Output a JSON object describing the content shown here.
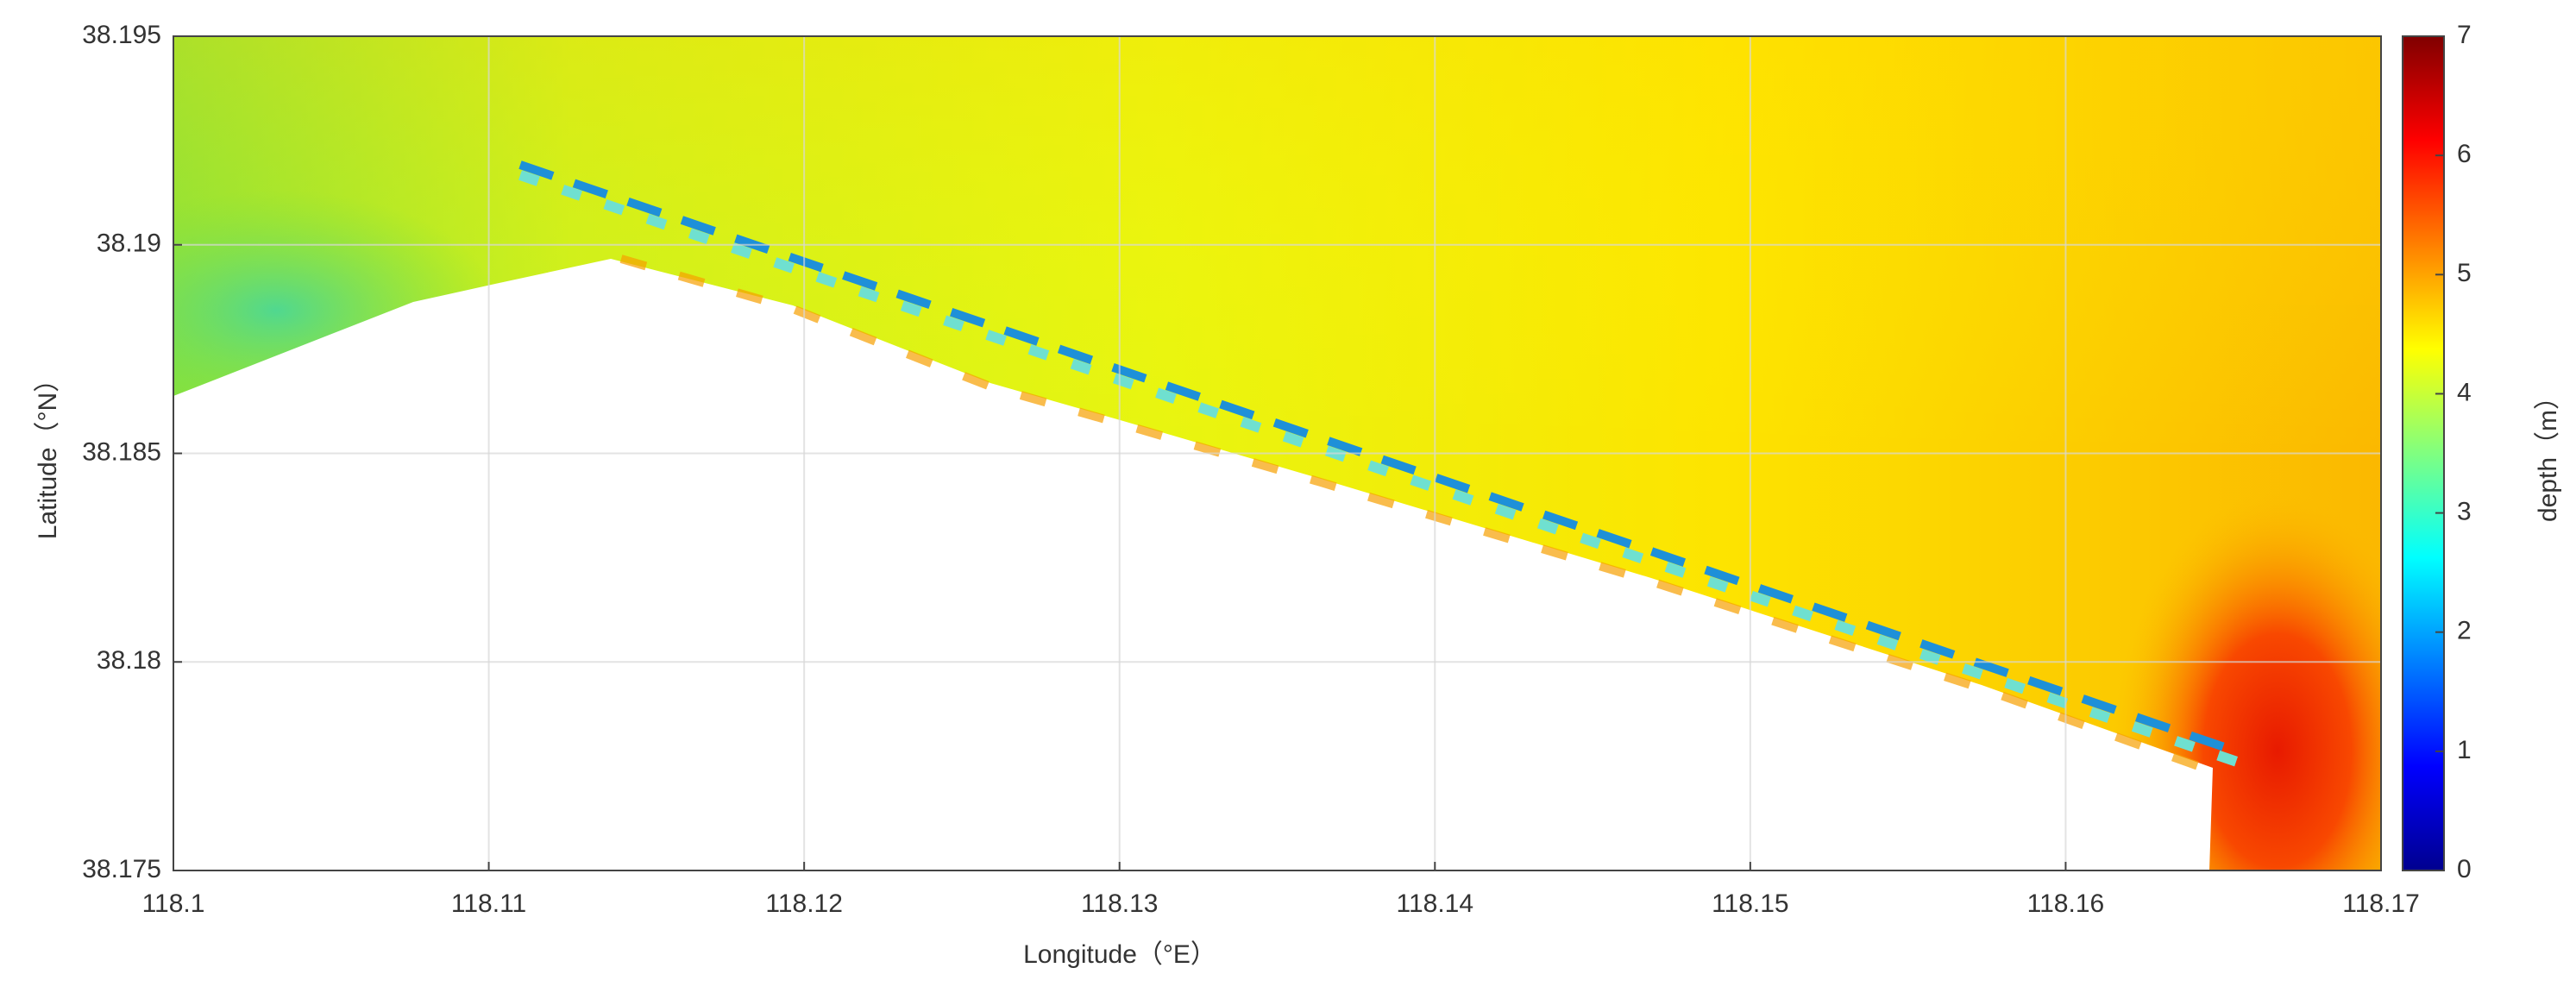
{
  "chart_data": {
    "type": "heatmap",
    "xlabel": "Longitude（°E）",
    "ylabel": "Latitude（°N）",
    "xlim": [
      118.1,
      118.17
    ],
    "xticks": [
      118.1,
      118.11,
      118.12,
      118.13,
      118.14,
      118.15,
      118.16,
      118.17
    ],
    "ylim": [
      38.175,
      38.195
    ],
    "yticks": [
      38.175,
      38.18,
      38.185,
      38.19,
      38.195
    ],
    "grid": true,
    "colorbar": {
      "label": "depth（m）",
      "lim": [
        0,
        7
      ],
      "ticks": [
        0,
        1,
        2,
        3,
        4,
        5,
        6,
        7
      ]
    }
  }
}
